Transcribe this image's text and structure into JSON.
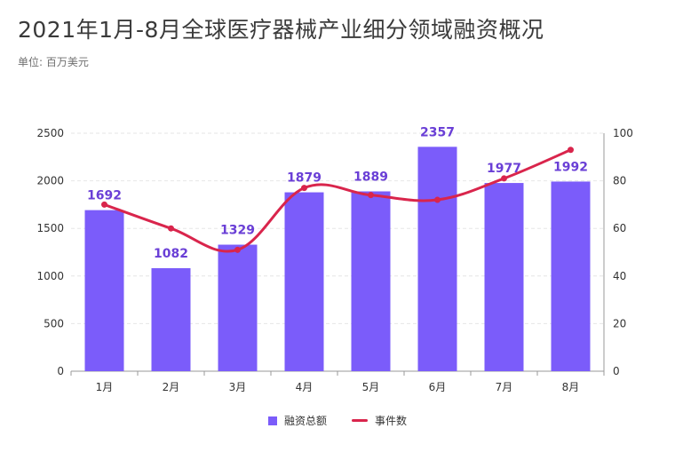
{
  "title": "2021年1月-8月全球医疗器械产业细分领域融资概况",
  "subtitle": "单位: 百万美元",
  "colors": {
    "bar": "#7b5cfa",
    "line": "#d9254c",
    "bar_label": "#6a3fd6",
    "grid": "#e6e6e6",
    "axis_text": "#333333"
  },
  "legend": {
    "bar_label": "融资总额",
    "line_label": "事件数"
  },
  "chart_data": {
    "type": "bar+line",
    "categories": [
      "1月",
      "2月",
      "3月",
      "4月",
      "5月",
      "6月",
      "7月",
      "8月"
    ],
    "series": [
      {
        "name": "融资总额",
        "type": "bar",
        "axis": "left",
        "values": [
          1692,
          1082,
          1329,
          1879,
          1889,
          2357,
          1977,
          1992
        ]
      },
      {
        "name": "事件数",
        "type": "line",
        "axis": "right",
        "values": [
          70,
          60,
          51,
          77,
          74,
          72,
          81,
          93
        ]
      }
    ],
    "ylim_left": [
      0,
      2500
    ],
    "yticks_left": [
      0,
      500,
      1000,
      1500,
      2000,
      2500
    ],
    "ylim_right": [
      0,
      100
    ],
    "yticks_right": [
      0,
      20,
      40,
      60,
      80,
      100
    ],
    "grid": true,
    "legend_position": "bottom"
  }
}
